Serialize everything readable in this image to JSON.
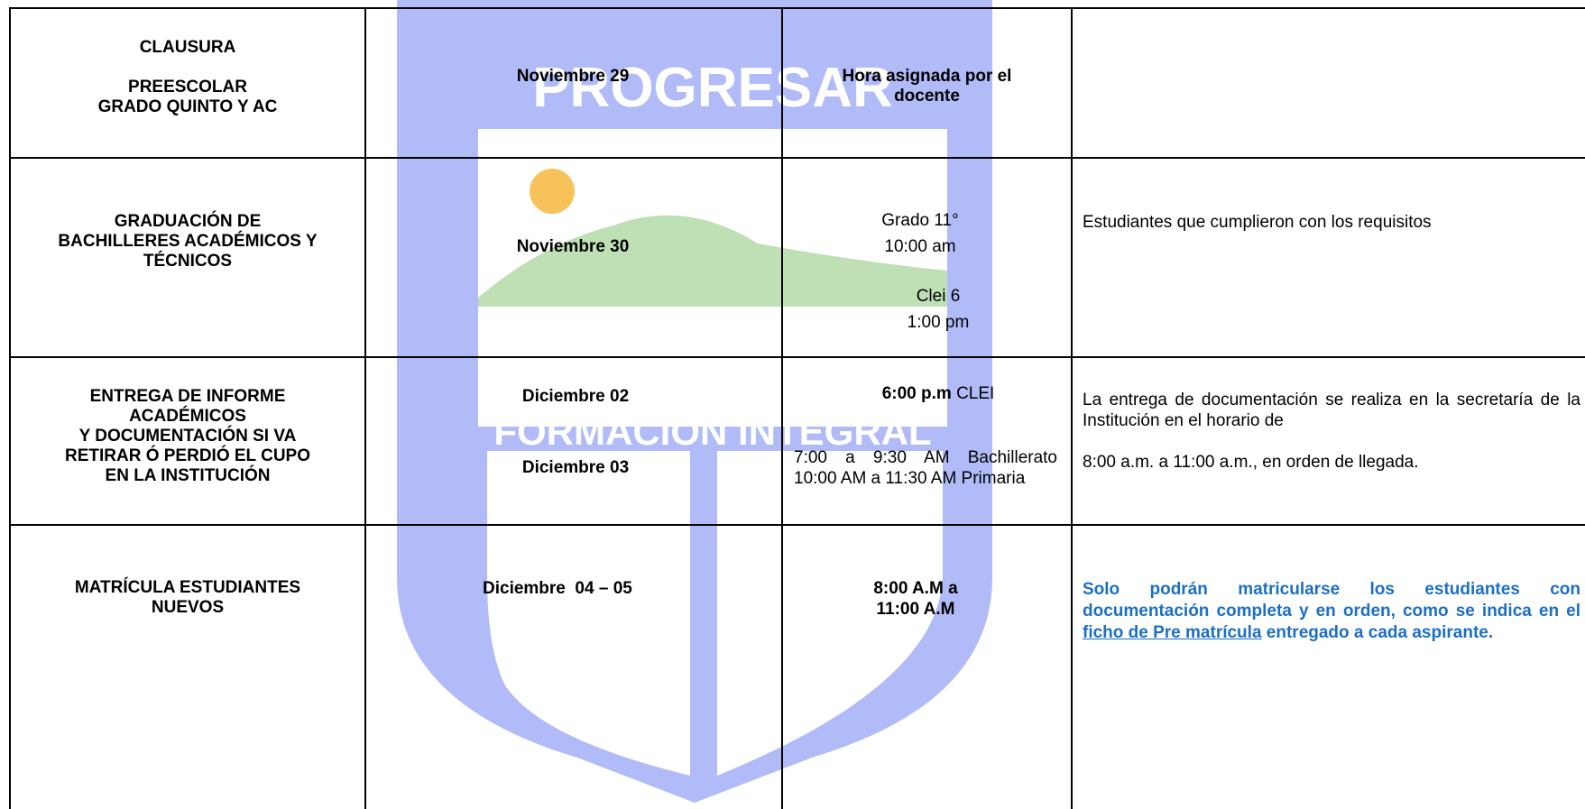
{
  "watermark": {
    "top": "PROGRESAR",
    "bottom": "FORMACIÓN INTEGRAL"
  },
  "table": {
    "rows": [
      {
        "event": [
          "CLAUSURA",
          "PREESCOLAR",
          "GRADO QUINTO Y AC"
        ],
        "dates": [
          "Noviembre 29"
        ],
        "times": [
          "Hora asignada por el docente"
        ]
      },
      {
        "event": [
          "GRADUACIÓN DE",
          "BACHILLERES ACADÉMICOS Y",
          "TÉCNICOS"
        ],
        "dates": [
          "Noviembre 30"
        ],
        "times": [
          "Grado 11°",
          "10:00 am",
          "Clei 6",
          "1:00 pm"
        ],
        "notes": [
          "Estudiantes que cumplieron con los requisitos"
        ]
      },
      {
        "event": [
          "ENTREGA DE INFORME",
          "ACADÉMICOS",
          "Y DOCUMENTACIÓN SI VA",
          "RETIRAR Ó PERDIÓ EL CUPO",
          "EN LA INSTITUCIÓN"
        ],
        "dates": [
          "Diciembre 02",
          "Diciembre 03"
        ],
        "times": [
          "6:00 p.m",
          "CLEI",
          "7:00 a 9:30 AM Bachillerato",
          "10:00 AM a 11:30 AM Primaria"
        ],
        "notes": [
          "La entrega de documentación se realiza en la secretaría de la Institución en el horario de",
          "8:00 a.m. a 11:00 a.m., en orden de llegada."
        ]
      },
      {
        "event": [
          "MATRÍCULA ESTUDIANTES",
          "NUEVOS"
        ],
        "dates": [
          "Diciembre  04 – 05"
        ],
        "times": [
          "8:00 A.M a",
          "11:00 A.M"
        ],
        "notes": [
          "Solo podrán matricularse los estudiantes con documentación completa y en orden, como se indica en el",
          "ficho de Pre matrícula",
          "entregado a cada aspirante."
        ]
      }
    ]
  }
}
